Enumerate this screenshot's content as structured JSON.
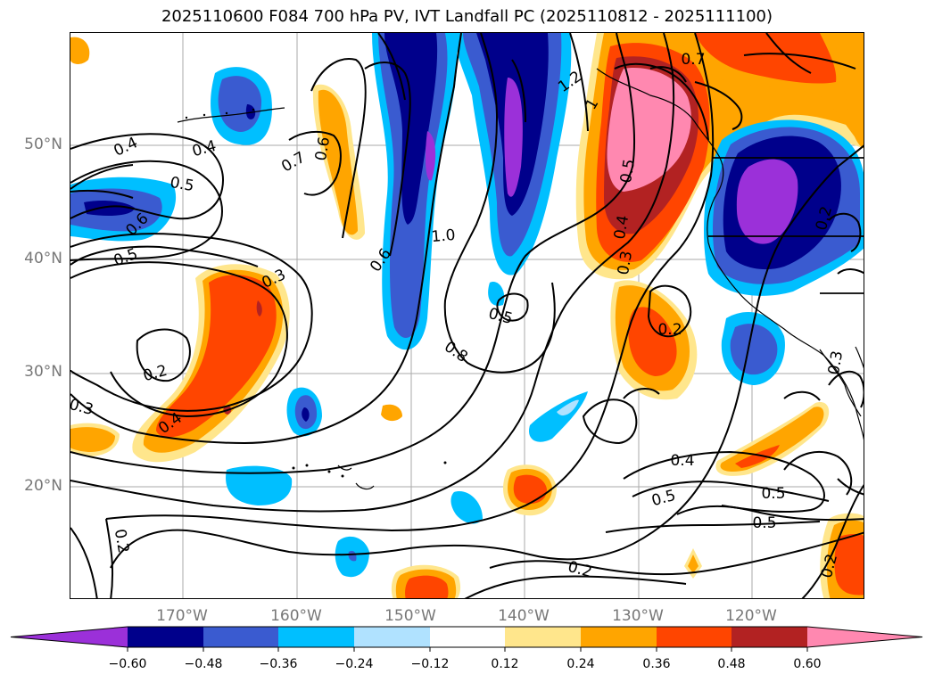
{
  "title": "2025110600 F084 700 hPa PV, IVT Landfall PC (2025110812 - 2025111100)",
  "lat_labels": [
    "50°N",
    "40°N",
    "30°N",
    "20°N"
  ],
  "lon_labels": [
    "170°W",
    "160°W",
    "150°W",
    "140°W",
    "130°W",
    "120°W"
  ],
  "colorbar": {
    "ticks": [
      "−0.60",
      "−0.48",
      "−0.36",
      "−0.24",
      "−0.12",
      "0.12",
      "0.24",
      "0.36",
      "0.48",
      "0.60"
    ],
    "colors": [
      "#9b30d9",
      "#00008b",
      "#3a5bd0",
      "#00bfff",
      "#b0e2ff",
      "#ffffff",
      "#ffe68c",
      "#ffa500",
      "#ff4500",
      "#b22222",
      "#ff88b0"
    ],
    "extend": "both"
  },
  "contour_labels": [
    {
      "text": "0.4"
    },
    {
      "text": "0.4"
    },
    {
      "text": "0.5"
    },
    {
      "text": "0.7"
    },
    {
      "text": "0.6"
    },
    {
      "text": "0.6"
    },
    {
      "text": "0.5"
    },
    {
      "text": "0.3"
    },
    {
      "text": "0.6"
    },
    {
      "text": "1.0"
    },
    {
      "text": "0.5"
    },
    {
      "text": "0.8"
    },
    {
      "text": "0.2"
    },
    {
      "text": "0.4"
    },
    {
      "text": "0.3"
    },
    {
      "text": "1.2"
    },
    {
      "text": "0.7"
    },
    {
      "text": "1"
    },
    {
      "text": "0.5"
    },
    {
      "text": "0.4"
    },
    {
      "text": "0.3"
    },
    {
      "text": "0.2"
    },
    {
      "text": "0.5"
    },
    {
      "text": "0.3"
    },
    {
      "text": "0.4"
    },
    {
      "text": "0.5"
    },
    {
      "text": "0.5"
    },
    {
      "text": "0.2"
    },
    {
      "text": "0.2"
    },
    {
      "text": "0.2"
    },
    {
      "text": "0.2"
    }
  ]
}
